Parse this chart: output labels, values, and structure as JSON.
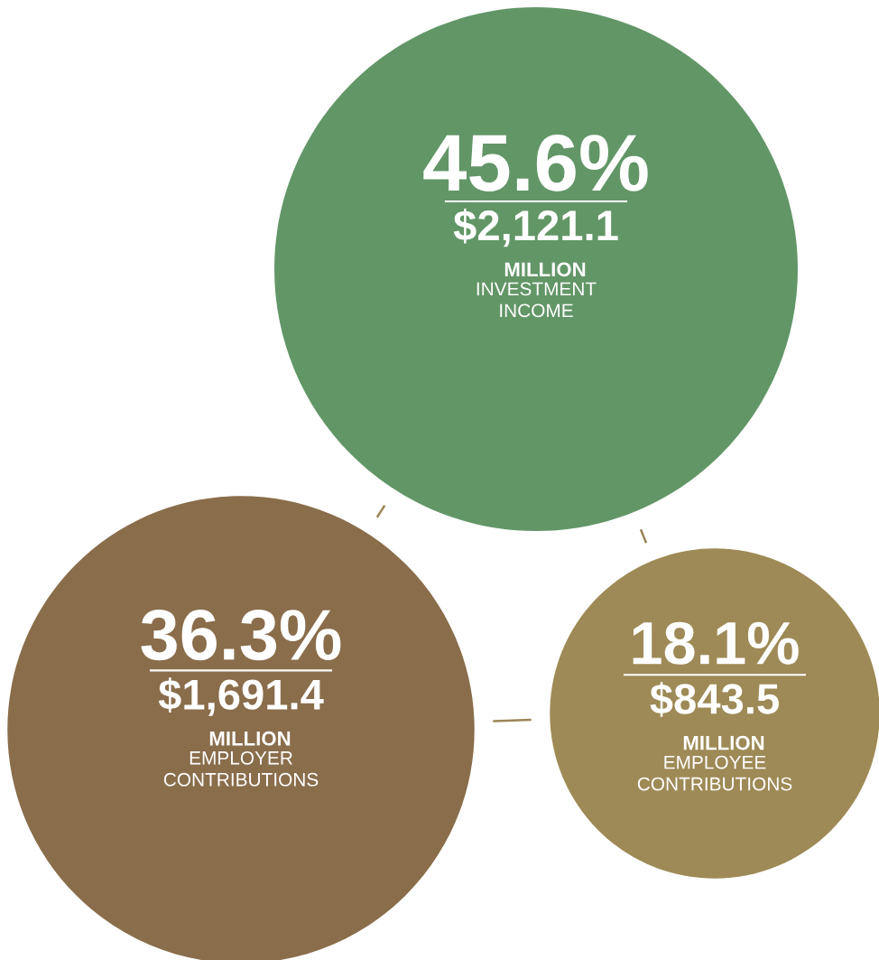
{
  "chart_data": {
    "type": "other",
    "categories": [
      "INVESTMENT INCOME",
      "EMPLOYER CONTRIBUTIONS",
      "EMPLOYEE CONTRIBUTIONS"
    ],
    "values": [
      45.6,
      36.3,
      18.1
    ],
    "value_labels": [
      "45.6%",
      "36.3%",
      "18.1%"
    ],
    "colors": [
      "#629667",
      "#8a6d4b",
      "#9e8a56"
    ],
    "annotations": [
      {
        "text": "$2,121.1 MILLION",
        "x": "INVESTMENT INCOME"
      },
      {
        "text": "$1,691.4 MILLION",
        "x": "EMPLOYER CONTRIBUTIONS"
      },
      {
        "text": "$843.5 MILLION",
        "x": "EMPLOYEE CONTRIBUTIONS"
      }
    ]
  }
}
